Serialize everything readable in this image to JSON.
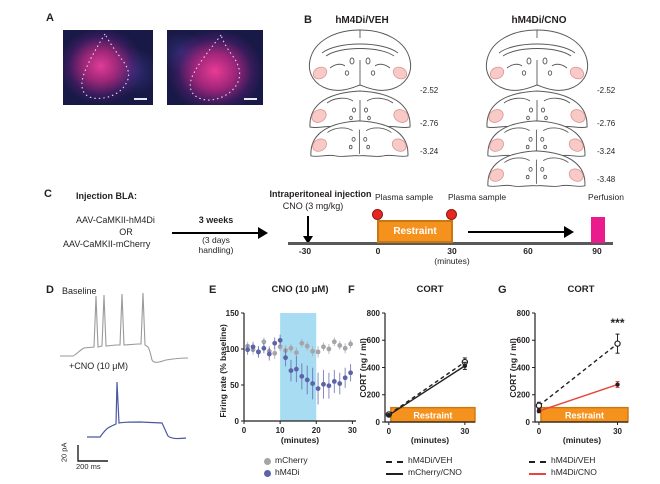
{
  "colors": {
    "ink": "#231f20",
    "restraint_orange": "#f5921e",
    "perfusion_magenta": "#ea1c8d",
    "plasma_red": "#e8251f",
    "band_blue": "#a7dcf2",
    "hm4di_blue": "#5c63a8",
    "mcherry_gray": "#a5a5a9",
    "cno_red": "#e8453c"
  },
  "figure": {
    "panels": {
      "A": {
        "label": "A"
      },
      "B": {
        "label": "B",
        "left_title": "hM4Di/VEH",
        "right_title": "hM4Di/CNO",
        "left_coords": [
          "-2.52",
          "-2.76",
          "-3.24"
        ],
        "right_coords": [
          "-2.52",
          "-2.76",
          "-3.24",
          "-3.48"
        ]
      },
      "C": {
        "label": "C",
        "injection_site_title": "Injection BLA:",
        "virus_1": "AAV-CaMKII-hM4Di",
        "or_text": "OR",
        "virus_2": "AAV-CaMKII-mCherry",
        "interval_top": "3 weeks",
        "interval_bottom_1": "(3 days",
        "interval_bottom_2": "handling)",
        "ip_injection_title": "Intraperitoneal injection",
        "ip_injection_sub": "CNO (3 mg/kg)",
        "plasma_sample_1": "Plasma sample",
        "plasma_sample_2": "Plasma sample",
        "perfusion_label": "Perfusion",
        "restraint_label": "Restraint",
        "timeline_ticks": [
          "-30",
          "0",
          "30",
          "60",
          "90"
        ],
        "minutes_label": "(minutes)"
      },
      "D": {
        "label": "D",
        "baseline_label": "Baseline",
        "cno_label": "+CNO (10 μM)",
        "scalebar_vertical": "20 pA",
        "scalebar_horizontal": "200 ms"
      },
      "E": {
        "label": "E",
        "title": "CNO (10 μM)",
        "ylabel": "Firing rate (% baseline)",
        "xlabel": "(minutes)",
        "legend": [
          "mCherry",
          "hM4Di"
        ]
      },
      "F": {
        "label": "F",
        "title": "CORT",
        "ylabel": "CORT (ng / ml)",
        "xlabel": "(minutes)",
        "restraint_label": "Restraint",
        "legend": [
          "hM4Di/VEH",
          "mCherry/CNO"
        ]
      },
      "G": {
        "label": "G",
        "title": "CORT",
        "ylabel": "CORT (ng / ml)",
        "xlabel": "(minutes)",
        "restraint_label": "Restraint",
        "significance": "***",
        "legend": [
          "hM4Di/VEH",
          "hM4Di/CNO"
        ]
      }
    }
  },
  "chart_data": [
    {
      "panel": "E",
      "type": "scatter",
      "title": "CNO (10 μM)",
      "xlabel": "(minutes)",
      "ylabel": "Firing rate (% baseline)",
      "xlim": [
        0,
        31
      ],
      "ylim": [
        0,
        150
      ],
      "xticks": [
        0,
        10,
        20,
        30
      ],
      "yticks": [
        0,
        50,
        100,
        150
      ],
      "shaded_region": {
        "x0": 10,
        "x1": 20,
        "color": "#a7dcf2"
      },
      "x": [
        1,
        2.5,
        4,
        5.5,
        7,
        8.5,
        10,
        11.5,
        13,
        14.5,
        16,
        17.5,
        19,
        20.5,
        22,
        23.5,
        25,
        26.5,
        28,
        29.5
      ],
      "series": [
        {
          "name": "mCherry",
          "color": "#a5a5a9",
          "values": [
            104,
            99,
            96,
            110,
            97,
            94,
            103,
            98,
            101,
            95,
            108,
            104,
            97,
            96,
            103,
            100,
            110,
            105,
            101,
            107
          ],
          "errors": [
            6,
            7,
            6,
            6,
            7,
            8,
            6,
            7,
            6,
            7,
            6,
            6,
            7,
            8,
            6,
            7,
            6,
            6,
            7,
            6
          ]
        },
        {
          "name": "hM4Di",
          "color": "#5c63a8",
          "values": [
            99,
            103,
            96,
            101,
            93,
            108,
            112,
            88,
            70,
            72,
            62,
            57,
            52,
            45,
            51,
            49,
            55,
            52,
            60,
            67
          ],
          "errors": [
            7,
            7,
            8,
            7,
            9,
            8,
            8,
            12,
            15,
            18,
            18,
            20,
            22,
            22,
            20,
            18,
            16,
            15,
            14,
            12
          ]
        }
      ],
      "legend_position": "below"
    },
    {
      "panel": "F",
      "type": "line",
      "title": "CORT",
      "xlabel": "(minutes)",
      "ylabel": "CORT (ng / ml)",
      "xlim": [
        -1.5,
        34
      ],
      "ylim": [
        0,
        800
      ],
      "xticks": [
        0,
        30
      ],
      "yticks": [
        0,
        200,
        400,
        600,
        800
      ],
      "x": [
        0,
        30
      ],
      "series": [
        {
          "name": "hM4Di/VEH",
          "line": "dashed",
          "color": "#231f20",
          "marker": "open",
          "marker_color": "#231f20",
          "values": [
            55,
            440
          ],
          "errors": [
            12,
            30
          ]
        },
        {
          "name": "mCherry/CNO",
          "line": "solid",
          "color": "#231f20",
          "marker": "filled",
          "marker_color": "#231f20",
          "values": [
            50,
            412
          ],
          "errors": [
            10,
            26
          ]
        }
      ],
      "restraint": {
        "x0": 0,
        "x1": 30,
        "label": "Restraint",
        "color": "#f5921e"
      },
      "legend_position": "below"
    },
    {
      "panel": "G",
      "type": "line",
      "title": "CORT",
      "xlabel": "(minutes)",
      "ylabel": "CORT (ng / ml)",
      "xlim": [
        -1.5,
        34
      ],
      "ylim": [
        0,
        800
      ],
      "xticks": [
        0,
        30
      ],
      "yticks": [
        0,
        200,
        400,
        600,
        800
      ],
      "x": [
        0,
        30
      ],
      "significance": "***",
      "series": [
        {
          "name": "hM4Di/VEH",
          "line": "dashed",
          "color": "#231f20",
          "marker": "open",
          "marker_color": "#231f20",
          "values": [
            120,
            575
          ],
          "errors": [
            25,
            70
          ]
        },
        {
          "name": "hM4Di/CNO",
          "line": "solid",
          "color": "#e8453c",
          "marker": "filled",
          "marker_color": "#231f20",
          "values": [
            80,
            275
          ],
          "errors": [
            12,
            22
          ]
        }
      ],
      "restraint": {
        "x0": 0,
        "x1": 30,
        "label": "Restraint",
        "color": "#f5921e"
      },
      "legend_position": "below"
    }
  ]
}
